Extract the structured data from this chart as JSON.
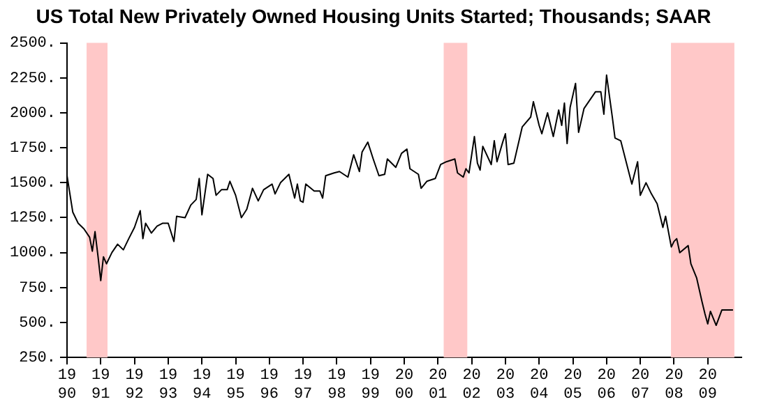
{
  "chart_data": {
    "type": "line",
    "title": "US Total New Privately Owned Housing Units Started; Thousands; SAAR",
    "x": [
      1990,
      1990.17,
      1990.33,
      1990.5,
      1990.67,
      1990.75,
      1990.83,
      1990.92,
      1991,
      1991.08,
      1991.17,
      1991.33,
      1991.5,
      1991.67,
      1991.83,
      1992,
      1992.17,
      1992.25,
      1992.33,
      1992.5,
      1992.67,
      1992.83,
      1993,
      1993.17,
      1993.25,
      1993.5,
      1993.67,
      1993.83,
      1993.92,
      1994,
      1994.17,
      1994.33,
      1994.42,
      1994.58,
      1994.75,
      1994.83,
      1995,
      1995.17,
      1995.33,
      1995.5,
      1995.67,
      1995.83,
      1996.08,
      1996.17,
      1996.33,
      1996.58,
      1996.75,
      1996.83,
      1996.92,
      1997,
      1997.08,
      1997.33,
      1997.5,
      1997.58,
      1997.67,
      1997.92,
      1998.08,
      1998.33,
      1998.5,
      1998.67,
      1998.75,
      1998.92,
      1999.08,
      1999.25,
      1999.42,
      1999.5,
      1999.75,
      1999.92,
      2000.08,
      2000.17,
      2000.42,
      2000.5,
      2000.67,
      2000.92,
      2001.08,
      2001.25,
      2001.5,
      2001.58,
      2001.75,
      2001.83,
      2001.92,
      2002.08,
      2002.17,
      2002.25,
      2002.33,
      2002.58,
      2002.67,
      2002.75,
      2002.92,
      2003,
      2003.08,
      2003.25,
      2003.5,
      2003.75,
      2003.83,
      2004,
      2004.08,
      2004.25,
      2004.42,
      2004.58,
      2004.67,
      2004.75,
      2004.83,
      2004.92,
      2005.08,
      2005.17,
      2005.33,
      2005.67,
      2005.83,
      2005.92,
      2006,
      2006.17,
      2006.25,
      2006.42,
      2006.58,
      2006.75,
      2006.92,
      2007,
      2007.17,
      2007.33,
      2007.5,
      2007.67,
      2007.75,
      2007.92,
      2008,
      2008.08,
      2008.17,
      2008.42,
      2008.5,
      2008.67,
      2008.83,
      2008.92,
      2009,
      2009.08,
      2009.25,
      2009.42,
      2009.58,
      2009.75
    ],
    "series": [
      {
        "color": "#000000",
        "values": [
          1550,
          1290,
          1210,
          1170,
          1110,
          1010,
          1150,
          970,
          800,
          970,
          920,
          1000,
          1060,
          1020,
          1100,
          1180,
          1300,
          1100,
          1210,
          1140,
          1190,
          1210,
          1210,
          1080,
          1260,
          1250,
          1340,
          1380,
          1530,
          1270,
          1560,
          1530,
          1410,
          1450,
          1450,
          1510,
          1410,
          1250,
          1310,
          1460,
          1370,
          1450,
          1490,
          1420,
          1500,
          1560,
          1390,
          1490,
          1370,
          1360,
          1490,
          1440,
          1440,
          1390,
          1550,
          1570,
          1580,
          1540,
          1700,
          1580,
          1720,
          1790,
          1670,
          1550,
          1560,
          1670,
          1610,
          1710,
          1740,
          1600,
          1560,
          1460,
          1510,
          1530,
          1630,
          1650,
          1670,
          1570,
          1540,
          1600,
          1570,
          1830,
          1640,
          1590,
          1760,
          1630,
          1800,
          1650,
          1790,
          1850,
          1630,
          1640,
          1900,
          1970,
          2080,
          1910,
          1850,
          2000,
          1830,
          2020,
          1910,
          2070,
          1780,
          2040,
          2210,
          1860,
          2030,
          2150,
          2150,
          1990,
          2270,
          1970,
          1820,
          1800,
          1650,
          1490,
          1650,
          1410,
          1500,
          1420,
          1350,
          1180,
          1260,
          1040,
          1080,
          1100,
          1000,
          1050,
          920,
          820,
          650,
          560,
          490,
          580,
          480,
          590,
          590,
          590
        ]
      }
    ],
    "xlim": [
      1990,
      2010
    ],
    "xticks": [
      1990,
      1991,
      1992,
      1993,
      1994,
      1995,
      1996,
      1997,
      1998,
      1999,
      2000,
      2001,
      2002,
      2003,
      2004,
      2005,
      2006,
      2007,
      2008,
      2009
    ],
    "ylim": [
      250,
      2500
    ],
    "yticks": [
      {
        "value": 250,
        "label": "250."
      },
      {
        "value": 500,
        "label": "500."
      },
      {
        "value": 750,
        "label": "750."
      },
      {
        "value": 1000,
        "label": "1000."
      },
      {
        "value": 1250,
        "label": "1250."
      },
      {
        "value": 1500,
        "label": "1500."
      },
      {
        "value": 1750,
        "label": "1750."
      },
      {
        "value": 2000,
        "label": "2000."
      },
      {
        "value": 2250,
        "label": "2250."
      },
      {
        "value": 2500,
        "label": "2500."
      }
    ],
    "bands": [
      {
        "axis": "x",
        "from": 1990.58,
        "to": 1991.2,
        "color": "#ffc8c8"
      },
      {
        "axis": "x",
        "from": 2001.17,
        "to": 2001.87,
        "color": "#ffc8c8"
      },
      {
        "axis": "x",
        "from": 2007.91,
        "to": 2009.79,
        "color": "#ffc8c8"
      }
    ],
    "legend": false,
    "marker": "none",
    "line_style": "solid"
  }
}
